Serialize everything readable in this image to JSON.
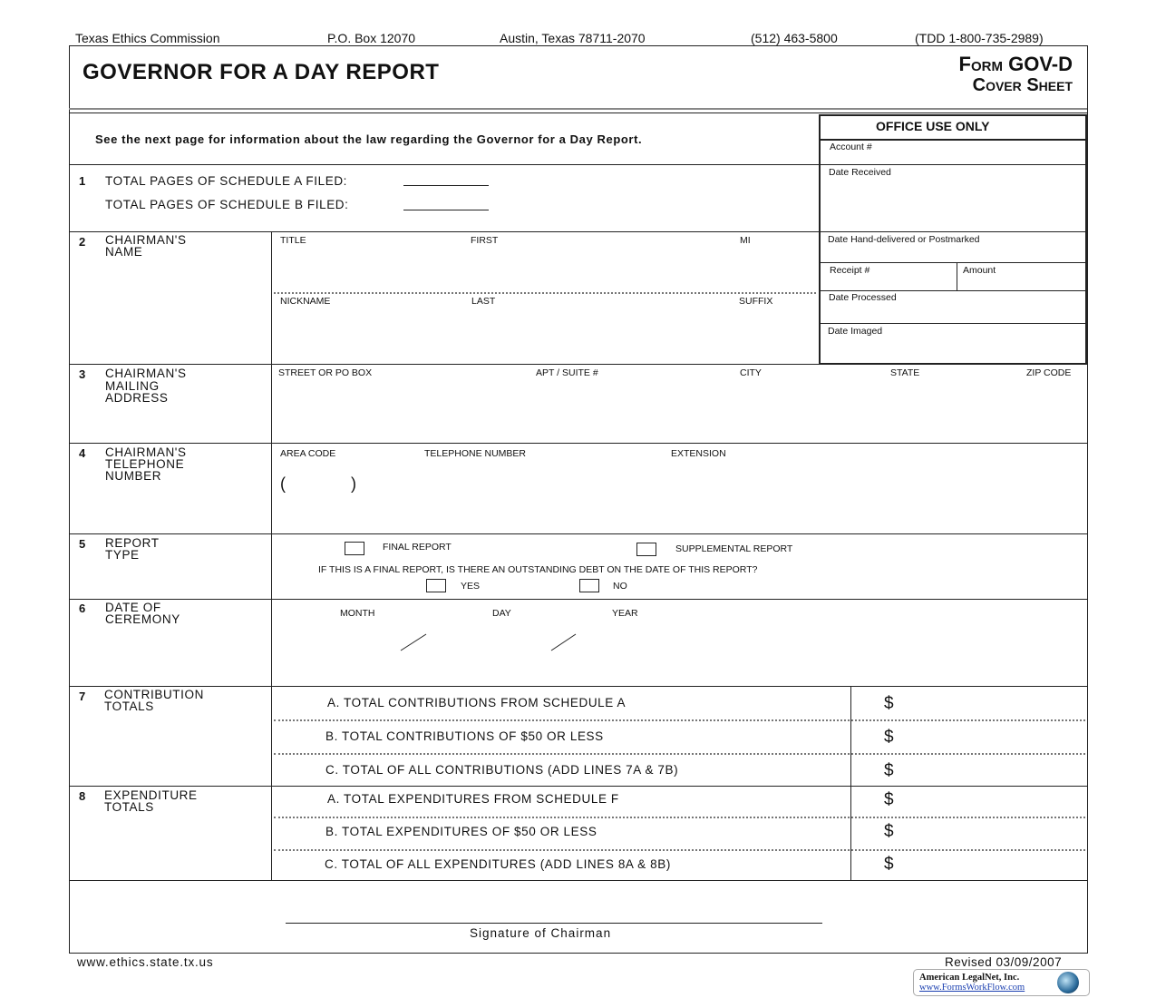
{
  "letterhead": {
    "org": "Texas Ethics Commission",
    "box": "P.O. Box 12070",
    "city": "Austin, Texas  78711-2070",
    "phone": "(512) 463-5800",
    "tdd": "(TDD 1-800-735-2989)"
  },
  "title": "GOVERNOR FOR A DAY REPORT",
  "form_id": "Form GOV-D",
  "form_sub": "Cover Sheet",
  "intro": "See the next page for information about the law regarding the Governor for a Day Report.",
  "office": {
    "title": "OFFICE USE ONLY",
    "account": "Account #",
    "received": "Date Received",
    "hand": "Date Hand-delivered or Postmarked",
    "receipt": "Receipt  #",
    "amount": "Amount",
    "processed": "Date Processed",
    "imaged": "Date Imaged"
  },
  "s1": {
    "num": "1",
    "a": "TOTAL PAGES OF SCHEDULE A FILED:",
    "b": "TOTAL PAGES OF SCHEDULE B FILED:"
  },
  "s2": {
    "num": "2",
    "label": "CHAIRMAN'S\nNAME",
    "title": "TITLE",
    "first": "FIRST",
    "mi": "MI",
    "nickname": "NICKNAME",
    "last": "LAST",
    "suffix": "SUFFIX"
  },
  "s3": {
    "num": "3",
    "label": "CHAIRMAN'S\nMAILING\nADDRESS",
    "street": "STREET OR PO BOX",
    "apt": "APT / SUITE #",
    "city": "CITY",
    "state": "STATE",
    "zip": "ZIP CODE"
  },
  "s4": {
    "num": "4",
    "label": "CHAIRMAN'S\nTELEPHONE\nNUMBER",
    "area": "AREA  CODE",
    "tel": "TELEPHONE  NUMBER",
    "ext": "EXTENSION",
    "paren_open": "(",
    "paren_close": ")"
  },
  "s5": {
    "num": "5",
    "label": "REPORT\nTYPE",
    "final": "FINAL REPORT",
    "supp": "SUPPLEMENTAL REPORT",
    "question": "IF THIS IS A FINAL REPORT, IS THERE AN OUTSTANDING DEBT ON THE DATE OF THIS REPORT?",
    "yes": "YES",
    "no": "NO"
  },
  "s6": {
    "num": "6",
    "label": "DATE OF\nCEREMONY",
    "month": "MONTH",
    "day": "DAY",
    "year": "YEAR"
  },
  "s7": {
    "num": "7",
    "label": "CONTRIBUTION\nTOTALS",
    "a": "A.  TOTAL CONTRIBUTIONS FROM SCHEDULE A",
    "b": "B.  TOTAL CONTRIBUTIONS OF $50 OR LESS",
    "c": "C.  TOTAL OF ALL CONTRIBUTIONS (ADD LINES 7A & 7B)"
  },
  "s8": {
    "num": "8",
    "label": "EXPENDITURE\nTOTALS",
    "a": "A.  TOTAL EXPENDITURES FROM SCHEDULE F",
    "b": "B.  TOTAL EXPENDITURES OF $50 OR LESS",
    "c": "C.  TOTAL OF ALL EXPENDITURES (ADD LINES 8A & 8B)"
  },
  "dollar": "$",
  "signature": "Signature of Chairman",
  "footer": {
    "url": "www.ethics.state.tx.us",
    "revised": "Revised  03/09/2007",
    "logo_name": "American LegalNet, Inc.",
    "logo_url": "www.FormsWorkFlow.com"
  }
}
